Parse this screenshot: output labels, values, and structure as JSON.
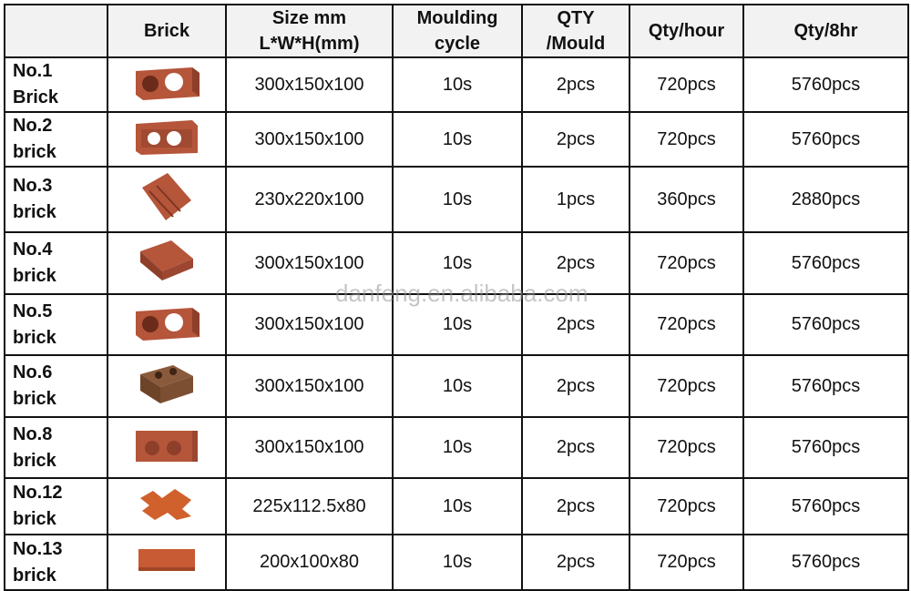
{
  "headers": [
    "",
    "Brick",
    "Size mm L*W*H(mm)",
    "Moulding cycle",
    "QTY /Mould",
    "Qty/hour",
    "Qty/8hr"
  ],
  "header_lines": {
    "size": [
      "Size mm",
      "L*W*H(mm)"
    ],
    "cycle": [
      "Moulding",
      "cycle"
    ],
    "qty_mould": [
      "QTY",
      "/Mould"
    ]
  },
  "rows": [
    {
      "name": [
        "No.1",
        "Brick"
      ],
      "image": "two-hole-brick",
      "size": "300x150x100",
      "cycle": "10s",
      "qty_mould": "2pcs",
      "qty_hour": "720pcs",
      "qty_8hr": "5760pcs"
    },
    {
      "name": [
        "No.2",
        "brick"
      ],
      "image": "two-hole-channel-brick",
      "size": "300x150x100",
      "cycle": "10s",
      "qty_mould": "2pcs",
      "qty_hour": "720pcs",
      "qty_8hr": "5760pcs"
    },
    {
      "name": [
        "No.3",
        "brick"
      ],
      "image": "grooved-block",
      "size": "230x220x100",
      "cycle": "10s",
      "qty_mould": "1pcs",
      "qty_hour": "360pcs",
      "qty_8hr": "2880pcs"
    },
    {
      "name": [
        "No.4",
        "brick"
      ],
      "image": "interlock-stack-brick",
      "size": "300x150x100",
      "cycle": "10s",
      "qty_mould": "2pcs",
      "qty_hour": "720pcs",
      "qty_8hr": "5760pcs"
    },
    {
      "name": [
        "No.5",
        "brick"
      ],
      "image": "two-hole-brick",
      "size": "300x150x100",
      "cycle": "10s",
      "qty_mould": "2pcs",
      "qty_hour": "720pcs",
      "qty_8hr": "5760pcs"
    },
    {
      "name": [
        "No.6",
        "brick"
      ],
      "image": "interlocking-block",
      "size": "300x150x100",
      "cycle": "10s",
      "qty_mould": "2pcs",
      "qty_hour": "720pcs",
      "qty_8hr": "5760pcs"
    },
    {
      "name": [
        "No.8",
        "brick"
      ],
      "image": "two-hole-brick-flat",
      "size": "300x150x100",
      "cycle": "10s",
      "qty_mould": "2pcs",
      "qty_hour": "720pcs",
      "qty_8hr": "5760pcs"
    },
    {
      "name": [
        "No.12",
        "brick"
      ],
      "image": "zigzag-paver",
      "size": "225x112.5x80",
      "cycle": "10s",
      "qty_mould": "2pcs",
      "qty_hour": "720pcs",
      "qty_8hr": "5760pcs"
    },
    {
      "name": [
        "No.13",
        "brick"
      ],
      "image": "solid-paver",
      "size": "200x100x80",
      "cycle": "10s",
      "qty_mould": "2pcs",
      "qty_hour": "720pcs",
      "qty_8hr": "5760pcs"
    }
  ],
  "watermark": "danfeng.en.alibaba.com",
  "colors": {
    "brick": "#b5553a",
    "brick_dark": "#8e3f2a",
    "header_bg": "#f2f2f2",
    "border": "#111111"
  }
}
